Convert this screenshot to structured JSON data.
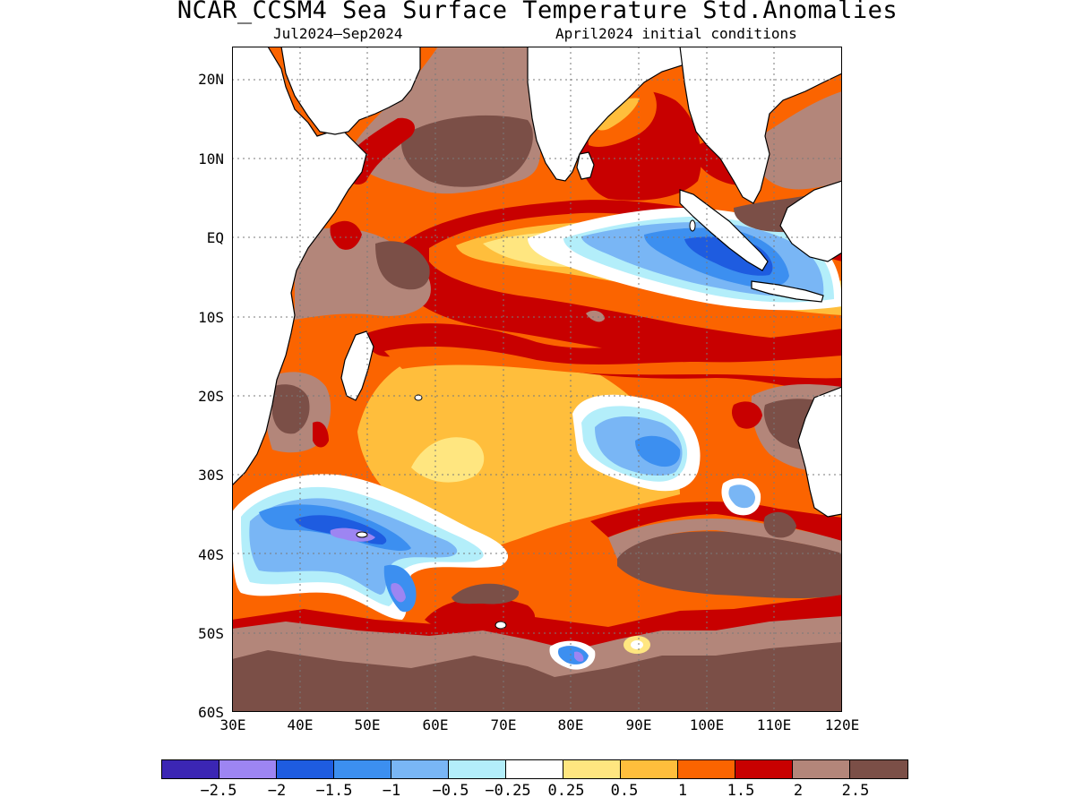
{
  "title": "NCAR_CCSM4 Sea Surface Temperature Std.Anomalies",
  "subtitle_left": "Jul2024—Sep2024",
  "subtitle_right": "April2024 initial conditions",
  "y_axis_labels": [
    "20N",
    "10N",
    "EQ",
    "10S",
    "20S",
    "30S",
    "40S",
    "50S",
    "60S"
  ],
  "x_axis_labels": [
    "30E",
    "40E",
    "50E",
    "60E",
    "70E",
    "80E",
    "90E",
    "100E",
    "110E",
    "120E"
  ],
  "colorbar": {
    "colors": [
      "#3b26b4",
      "#9d85f2",
      "#1e5ce0",
      "#3c8ff0",
      "#79b6f5",
      "#b3eefa",
      "#ffffff",
      "#ffe680",
      "#ffbe3c",
      "#fb6400",
      "#c80000",
      "#b3867a",
      "#7b4f47"
    ],
    "labels": [
      "−2.5",
      "−2",
      "−1.5",
      "−1",
      "−0.5",
      "−0.25",
      "0.25",
      "0.5",
      "1",
      "1.5",
      "2",
      "2.5"
    ]
  },
  "map": {
    "lon_range": [
      30,
      120
    ],
    "lat_range": [
      -60,
      24
    ],
    "variable": "Sea Surface Temperature standardized anomaly"
  }
}
